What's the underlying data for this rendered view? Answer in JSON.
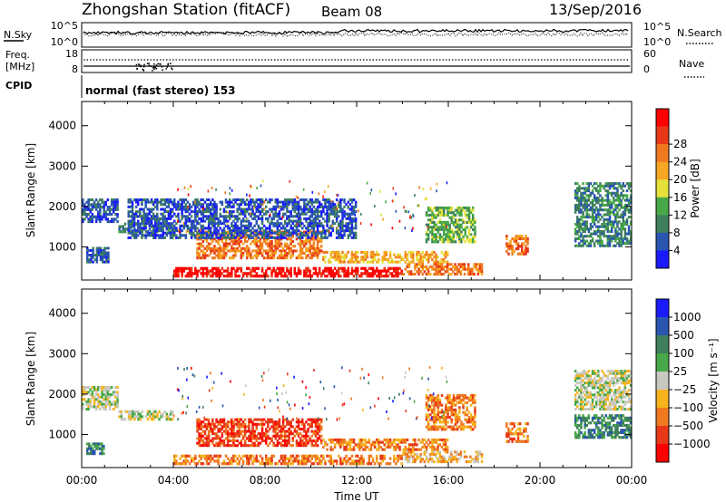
{
  "header": {
    "title": "Zhongshan Station (fitACF)",
    "beam": "Beam 08",
    "date": "13/Sep/2016"
  },
  "noise_panel": {
    "left_label": "N.Sky",
    "right_label": "N.Search",
    "left_ticks": [
      "10^5",
      "10^0"
    ],
    "right_ticks": [
      "10^5",
      "10^0"
    ]
  },
  "freq_panel": {
    "left_label_line1": "Freq.",
    "left_label_line2": "[MHz]",
    "right_label": "Nave",
    "left_ticks": [
      "18",
      "8"
    ],
    "right_ticks": [
      "60",
      "0"
    ]
  },
  "cpid": {
    "label": "CPID",
    "text": "normal (fast stereo) 153"
  },
  "colors": {
    "power": [
      "#1a1aff",
      "#2a55b0",
      "#3f7f5c",
      "#48a848",
      "#e6e03a",
      "#f5a623",
      "#f07820",
      "#e83818",
      "#ff0000"
    ],
    "velocity": [
      "#1a1aff",
      "#2a55b0",
      "#3f7f5c",
      "#48a848",
      "#c8c8c0",
      "#f5b41e",
      "#f07820",
      "#e83818",
      "#ff0000"
    ]
  },
  "chart_data": [
    {
      "type": "heatmap",
      "quantity": "power",
      "xlabel": "",
      "ylabel": "Slant Range [km]",
      "y_ticks": [
        "1000",
        "2000",
        "3000",
        "4000"
      ],
      "ylim": [
        180,
        4600
      ],
      "colorbar_label": "Power [dB]",
      "colorbar_ticks": [
        "4",
        "8",
        "12",
        "16",
        "20",
        "24",
        "28"
      ],
      "colorbar_range": [
        0,
        32
      ],
      "regions": [
        {
          "t": [
            0.0,
            1.6
          ],
          "r": [
            1600,
            2200
          ],
          "level": 1
        },
        {
          "t": [
            1.6,
            4.0
          ],
          "r": [
            1350,
            1600
          ],
          "level": 2
        },
        {
          "t": [
            0.2,
            1.2
          ],
          "r": [
            600,
            1000
          ],
          "level": 1
        },
        {
          "t": [
            4.0,
            14.0
          ],
          "r": [
            250,
            500
          ],
          "level": 8
        },
        {
          "t": [
            5.0,
            10.5
          ],
          "r": [
            700,
            1400
          ],
          "level": 6
        },
        {
          "t": [
            10.5,
            16.0
          ],
          "r": [
            600,
            900
          ],
          "level": 5
        },
        {
          "t": [
            14.0,
            17.5
          ],
          "r": [
            300,
            600
          ],
          "level": 6
        },
        {
          "t": [
            15.0,
            17.2
          ],
          "r": [
            1100,
            2000
          ],
          "level": 3
        },
        {
          "t": [
            18.5,
            19.5
          ],
          "r": [
            800,
            1300
          ],
          "level": 6
        },
        {
          "t": [
            21.5,
            24.0
          ],
          "r": [
            1000,
            2600
          ],
          "level": 2
        },
        {
          "t": [
            2.0,
            12.0
          ],
          "r": [
            1200,
            2200
          ],
          "level": 1
        }
      ]
    },
    {
      "type": "heatmap",
      "quantity": "velocity",
      "xlabel": "Time UT",
      "x_ticks": [
        "00:00",
        "04:00",
        "08:00",
        "12:00",
        "16:00",
        "20:00",
        "00:00"
      ],
      "ylabel": "Slant Range [km]",
      "y_ticks": [
        "1000",
        "2000",
        "3000",
        "4000"
      ],
      "ylim": [
        180,
        4600
      ],
      "colorbar_label": "Velocity [m s⁻¹]",
      "colorbar_ticks": [
        "1000",
        "500",
        "100",
        "25",
        "−25",
        "−100",
        "−500",
        "−1000"
      ],
      "regions": [
        {
          "t": [
            0.0,
            1.6
          ],
          "r": [
            1600,
            2200
          ],
          "level": 4
        },
        {
          "t": [
            1.6,
            4.0
          ],
          "r": [
            1350,
            1600
          ],
          "level": 4
        },
        {
          "t": [
            0.2,
            1.0
          ],
          "r": [
            500,
            800
          ],
          "level": 2
        },
        {
          "t": [
            4.0,
            14.0
          ],
          "r": [
            250,
            500
          ],
          "level": 6
        },
        {
          "t": [
            5.0,
            10.5
          ],
          "r": [
            700,
            1400
          ],
          "level": 7
        },
        {
          "t": [
            10.5,
            16.0
          ],
          "r": [
            600,
            900
          ],
          "level": 6
        },
        {
          "t": [
            14.0,
            17.5
          ],
          "r": [
            300,
            600
          ],
          "level": 5
        },
        {
          "t": [
            15.0,
            17.2
          ],
          "r": [
            1100,
            2000
          ],
          "level": 6
        },
        {
          "t": [
            18.5,
            19.5
          ],
          "r": [
            800,
            1300
          ],
          "level": 6
        },
        {
          "t": [
            21.5,
            24.0
          ],
          "r": [
            1600,
            2600
          ],
          "level": 4
        },
        {
          "t": [
            21.5,
            24.0
          ],
          "r": [
            900,
            1500
          ],
          "level": 2
        }
      ]
    }
  ]
}
